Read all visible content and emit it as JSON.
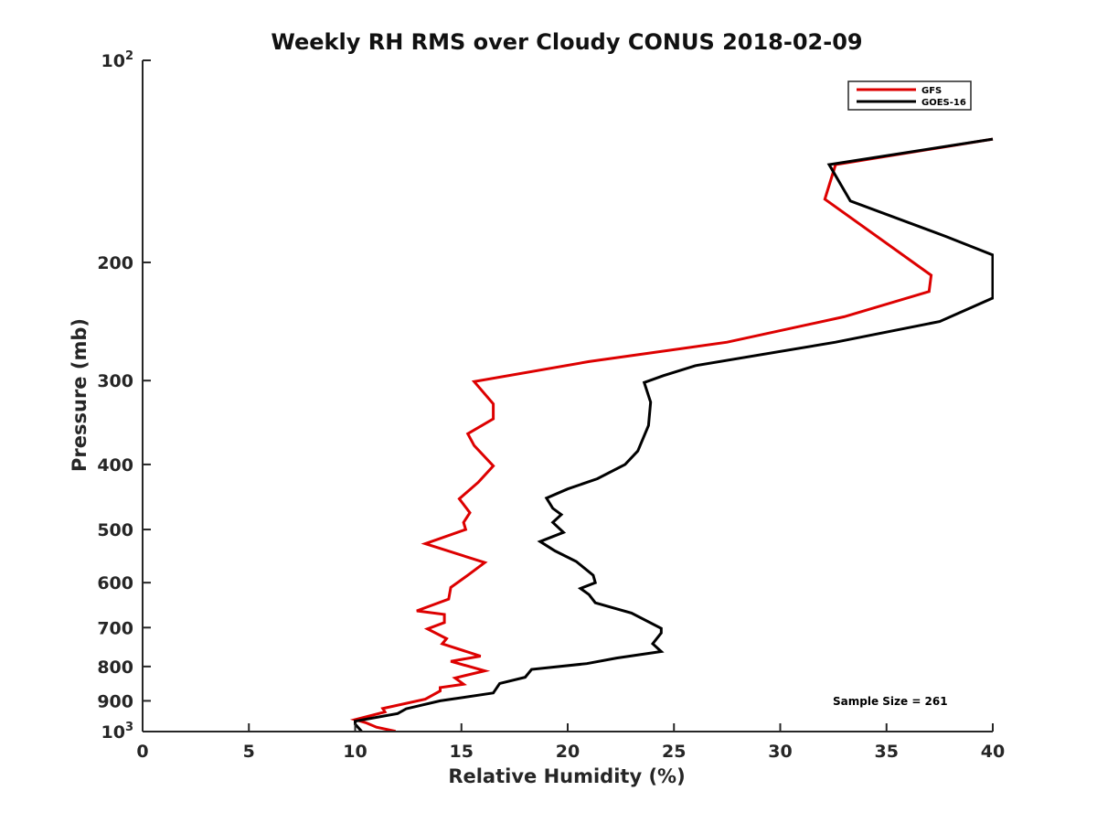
{
  "chart_data": {
    "type": "line",
    "title": "Weekly RH RMS over Cloudy CONUS 2018-02-09",
    "xlabel": "Relative Humidity (%)",
    "ylabel": "Pressure (mb)",
    "xlim": [
      0,
      40
    ],
    "ylim": [
      100,
      1000
    ],
    "y_scale": "log",
    "y_reversed": true,
    "grid": false,
    "legend_position": "top-right",
    "x_ticks": [
      0,
      5,
      10,
      15,
      20,
      25,
      30,
      35,
      40
    ],
    "y_ticks": [
      {
        "value": 100,
        "base": "10",
        "exp": "2"
      },
      {
        "value": 200,
        "label": "200"
      },
      {
        "value": 300,
        "label": "300"
      },
      {
        "value": 400,
        "label": "400"
      },
      {
        "value": 500,
        "label": "500"
      },
      {
        "value": 600,
        "label": "600"
      },
      {
        "value": 700,
        "label": "700"
      },
      {
        "value": 800,
        "label": "800"
      },
      {
        "value": 900,
        "label": "900"
      },
      {
        "value": 1000,
        "base": "10",
        "exp": "3"
      }
    ],
    "annotation": "Sample Size = 261",
    "series": [
      {
        "name": "GFS",
        "color": "#dd0000",
        "points": [
          [
            40.0,
            131
          ],
          [
            32.6,
            143
          ],
          [
            32.1,
            161
          ],
          [
            37.1,
            209
          ],
          [
            37.0,
            221
          ],
          [
            33.0,
            241
          ],
          [
            27.5,
            263
          ],
          [
            21.0,
            281
          ],
          [
            15.6,
            301
          ],
          [
            16.5,
            325
          ],
          [
            16.5,
            342
          ],
          [
            15.3,
            360
          ],
          [
            15.6,
            375
          ],
          [
            16.5,
            402
          ],
          [
            15.8,
            425
          ],
          [
            14.9,
            450
          ],
          [
            15.4,
            472
          ],
          [
            15.1,
            488
          ],
          [
            15.2,
            500
          ],
          [
            13.3,
            525
          ],
          [
            16.1,
            560
          ],
          [
            15.3,
            585
          ],
          [
            14.5,
            610
          ],
          [
            14.4,
            635
          ],
          [
            12.9,
            661
          ],
          [
            14.2,
            669
          ],
          [
            14.2,
            688
          ],
          [
            13.4,
            703
          ],
          [
            14.3,
            727
          ],
          [
            14.1,
            740
          ],
          [
            15.9,
            772
          ],
          [
            14.5,
            786
          ],
          [
            16.1,
            812
          ],
          [
            14.7,
            832
          ],
          [
            15.1,
            850
          ],
          [
            14.0,
            860
          ],
          [
            14.0,
            870
          ],
          [
            13.3,
            895
          ],
          [
            11.3,
            924
          ],
          [
            11.4,
            935
          ],
          [
            10.0,
            960
          ],
          [
            10.5,
            970
          ],
          [
            11.0,
            985
          ],
          [
            11.9,
            999
          ]
        ]
      },
      {
        "name": "GOES-16",
        "color": "#000000",
        "points": [
          [
            40.0,
            131
          ],
          [
            32.3,
            143
          ],
          [
            33.3,
            162
          ],
          [
            37.8,
            183
          ],
          [
            40.0,
            195
          ],
          [
            40.0,
            226
          ],
          [
            37.5,
            245
          ],
          [
            32.6,
            263
          ],
          [
            26.0,
            285
          ],
          [
            24.5,
            295
          ],
          [
            23.6,
            302
          ],
          [
            23.9,
            323
          ],
          [
            23.8,
            350
          ],
          [
            23.3,
            382
          ],
          [
            22.7,
            400
          ],
          [
            21.4,
            420
          ],
          [
            20.0,
            435
          ],
          [
            19.0,
            449
          ],
          [
            19.3,
            465
          ],
          [
            19.7,
            475
          ],
          [
            19.3,
            488
          ],
          [
            19.8,
            505
          ],
          [
            18.7,
            521
          ],
          [
            19.4,
            538
          ],
          [
            20.4,
            558
          ],
          [
            21.2,
            585
          ],
          [
            21.3,
            600
          ],
          [
            20.6,
            612
          ],
          [
            21.0,
            625
          ],
          [
            21.3,
            643
          ],
          [
            23.0,
            666
          ],
          [
            24.4,
            702
          ],
          [
            24.4,
            713
          ],
          [
            24.0,
            740
          ],
          [
            24.4,
            760
          ],
          [
            22.3,
            777
          ],
          [
            20.9,
            792
          ],
          [
            18.3,
            808
          ],
          [
            18.0,
            830
          ],
          [
            16.8,
            848
          ],
          [
            16.5,
            876
          ],
          [
            14.0,
            900
          ],
          [
            12.4,
            925
          ],
          [
            12.0,
            940
          ],
          [
            10.0,
            965
          ],
          [
            10.0,
            975
          ],
          [
            10.3,
            999
          ]
        ]
      }
    ]
  }
}
